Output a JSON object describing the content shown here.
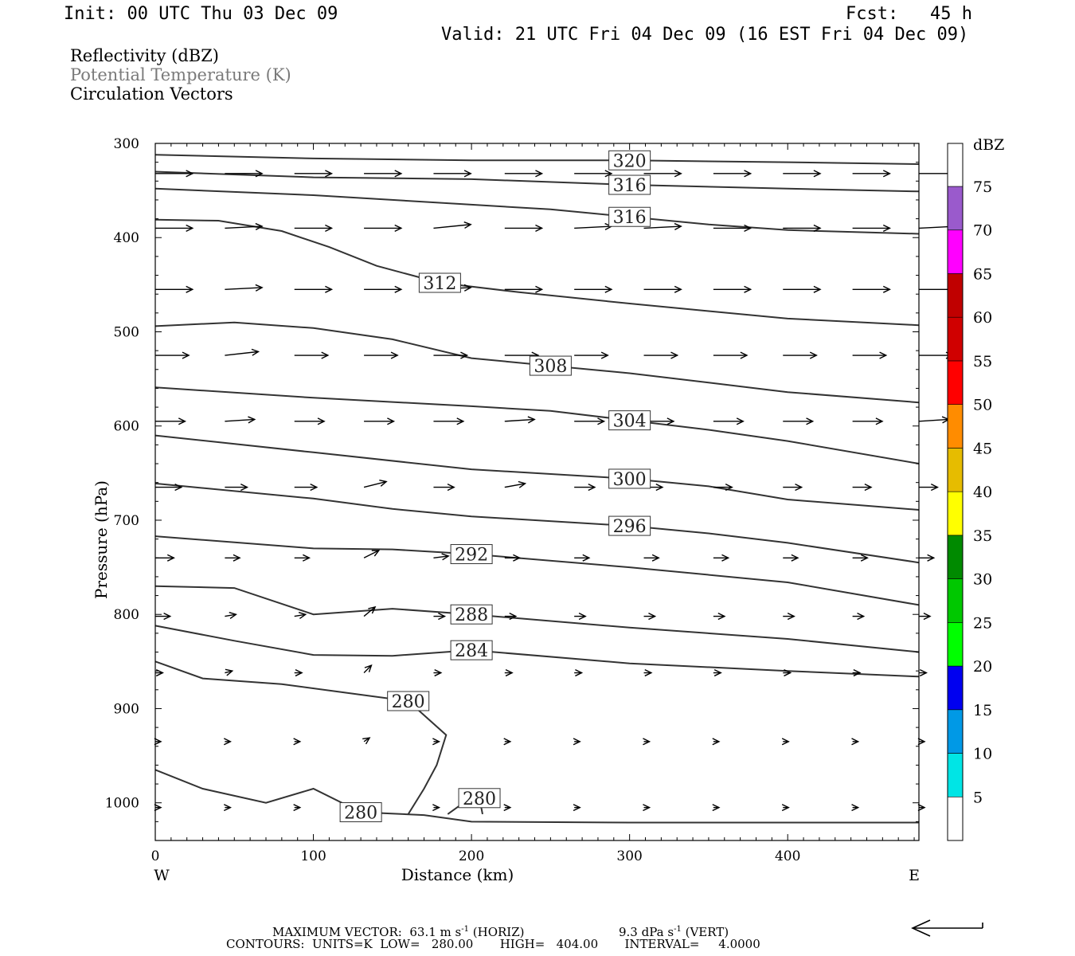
{
  "header": {
    "init": "Init: 00 UTC Thu 03 Dec 09",
    "fcst": "Fcst:   45 h",
    "valid": "Valid: 21 UTC Fri 04 Dec 09 (16 EST Fri 04 Dec 09)"
  },
  "legend_lines": {
    "reflectivity": "Reflectivity (dBZ)",
    "theta": "Potential Temperature (K)",
    "vectors": "Circulation Vectors"
  },
  "footer": {
    "max_vector_label": "MAXIMUM VECTOR:",
    "horiz_value": "63.1 m s",
    "horiz_sup": "-1",
    "horiz_tag": "(HORIZ)",
    "vert_value": "9.3 dPa s",
    "vert_sup": "-1",
    "vert_tag": "(VERT)",
    "contours_line": "CONTOURS:  UNITS=K  LOW=   280.00       HIGH=   404.00       INTERVAL=     4.0000"
  },
  "colors": {
    "theta_line": "#333333",
    "vector": "#000000",
    "frame": "#000000"
  },
  "chart_data": {
    "type": "contour",
    "xlabel": "Distance (km)",
    "ylabel": "Pressure (hPa)",
    "xlim": [
      0,
      483
    ],
    "ylim": [
      300,
      1040
    ],
    "y_log_scale": false,
    "x_ticks": [
      0,
      100,
      200,
      300,
      400
    ],
    "y_ticks": [
      300,
      400,
      500,
      600,
      700,
      800,
      900,
      1000
    ],
    "x_end_labels": {
      "left": "W",
      "right": "E"
    },
    "theta_contours": [
      {
        "level": 320,
        "points": [
          [
            0,
            312
          ],
          [
            100,
            316
          ],
          [
            200,
            318
          ],
          [
            300,
            318
          ],
          [
            400,
            320
          ],
          [
            483,
            322
          ]
        ]
      },
      {
        "level": 316,
        "points": [
          [
            0,
            330
          ],
          [
            100,
            336
          ],
          [
            200,
            338
          ],
          [
            300,
            344
          ],
          [
            400,
            348
          ],
          [
            483,
            351
          ]
        ]
      },
      {
        "level": 316,
        "points": [
          [
            0,
            348
          ],
          [
            100,
            355
          ],
          [
            200,
            365
          ],
          [
            250,
            370
          ],
          [
            300,
            378
          ],
          [
            350,
            386
          ],
          [
            400,
            392
          ],
          [
            483,
            396
          ]
        ]
      },
      {
        "level": 312,
        "points": [
          [
            0,
            381
          ],
          [
            40,
            382
          ],
          [
            80,
            393
          ],
          [
            110,
            410
          ],
          [
            140,
            430
          ],
          [
            180,
            448
          ],
          [
            230,
            458
          ],
          [
            300,
            470
          ],
          [
            350,
            478
          ],
          [
            400,
            486
          ],
          [
            483,
            493
          ]
        ]
      },
      {
        "level": 308,
        "points": [
          [
            0,
            494
          ],
          [
            50,
            490
          ],
          [
            100,
            496
          ],
          [
            150,
            508
          ],
          [
            200,
            528
          ],
          [
            250,
            536
          ],
          [
            300,
            544
          ],
          [
            350,
            554
          ],
          [
            400,
            564
          ],
          [
            483,
            575
          ]
        ]
      },
      {
        "level": 304,
        "points": [
          [
            0,
            559
          ],
          [
            100,
            570
          ],
          [
            200,
            579
          ],
          [
            250,
            584
          ],
          [
            300,
            594
          ],
          [
            350,
            604
          ],
          [
            400,
            616
          ],
          [
            483,
            640
          ]
        ]
      },
      {
        "level": 300,
        "points": [
          [
            0,
            610
          ],
          [
            100,
            628
          ],
          [
            200,
            646
          ],
          [
            300,
            656
          ],
          [
            350,
            664
          ],
          [
            400,
            678
          ],
          [
            483,
            689
          ]
        ]
      },
      {
        "level": 296,
        "points": [
          [
            0,
            661
          ],
          [
            100,
            677
          ],
          [
            150,
            688
          ],
          [
            200,
            696
          ],
          [
            300,
            706
          ],
          [
            350,
            714
          ],
          [
            400,
            724
          ],
          [
            483,
            745
          ]
        ]
      },
      {
        "level": 292,
        "points": [
          [
            0,
            717
          ],
          [
            100,
            730
          ],
          [
            150,
            731
          ],
          [
            200,
            736
          ],
          [
            300,
            750
          ],
          [
            400,
            766
          ],
          [
            483,
            790
          ]
        ]
      },
      {
        "level": 288,
        "points": [
          [
            0,
            770
          ],
          [
            50,
            772
          ],
          [
            100,
            800
          ],
          [
            150,
            794
          ],
          [
            200,
            800
          ],
          [
            300,
            814
          ],
          [
            400,
            826
          ],
          [
            483,
            840
          ]
        ]
      },
      {
        "level": 284,
        "points": [
          [
            0,
            812
          ],
          [
            50,
            828
          ],
          [
            100,
            843
          ],
          [
            150,
            844
          ],
          [
            200,
            838
          ],
          [
            300,
            852
          ],
          [
            400,
            860
          ],
          [
            483,
            866
          ]
        ]
      },
      {
        "level": 280,
        "points": [
          [
            0,
            850
          ],
          [
            30,
            868
          ],
          [
            80,
            874
          ],
          [
            120,
            883
          ],
          [
            160,
            892
          ],
          [
            184,
            928
          ],
          [
            178,
            960
          ],
          [
            170,
            985
          ],
          [
            160,
            1012
          ]
        ]
      },
      {
        "level": 280,
        "points": [
          [
            185,
            1012
          ],
          [
            195,
            1000
          ],
          [
            205,
            995
          ],
          [
            207,
            1012
          ]
        ]
      },
      {
        "level": 280,
        "points": [
          [
            0,
            965
          ],
          [
            30,
            985
          ],
          [
            70,
            1000
          ],
          [
            100,
            985
          ],
          [
            130,
            1010
          ],
          [
            170,
            1013
          ],
          [
            200,
            1020
          ],
          [
            300,
            1021
          ],
          [
            483,
            1021
          ]
        ]
      }
    ],
    "vector_rows": [
      {
        "p": 332,
        "u": [
          1.0,
          1.0,
          1.0,
          1.0,
          1.0,
          1.0,
          1.0,
          1.0,
          1.0,
          1.0,
          1.0,
          1.0
        ],
        "w": [
          0,
          0,
          0,
          0,
          0,
          0,
          0,
          0,
          0,
          0,
          0,
          0
        ]
      },
      {
        "p": 390,
        "u": [
          1.0,
          1.0,
          1.0,
          1.0,
          1.0,
          1.0,
          1.0,
          1.0,
          1.0,
          1.0,
          1.0,
          1.0
        ],
        "w": [
          0,
          -0.05,
          0,
          0,
          -0.1,
          0,
          -0.05,
          -0.05,
          0,
          0,
          0,
          -0.05
        ]
      },
      {
        "p": 455,
        "u": [
          1.0,
          1.0,
          1.0,
          1.0,
          1.0,
          1.0,
          1.0,
          1.0,
          1.0,
          1.0,
          1.0,
          1.0
        ],
        "w": [
          0,
          -0.05,
          0,
          0,
          -0.05,
          0,
          0,
          0,
          0,
          0,
          0,
          0
        ]
      },
      {
        "p": 525,
        "u": [
          0.9,
          0.9,
          0.9,
          0.9,
          0.9,
          0.9,
          0.9,
          0.9,
          0.9,
          0.9,
          0.9,
          0.9
        ],
        "w": [
          0,
          -0.1,
          0,
          0,
          0,
          0,
          0,
          0,
          0,
          0,
          0,
          0
        ]
      },
      {
        "p": 595,
        "u": [
          0.8,
          0.8,
          0.8,
          0.8,
          0.8,
          0.8,
          0.8,
          0.8,
          0.8,
          0.8,
          0.8,
          0.8
        ],
        "w": [
          0,
          -0.05,
          0,
          0,
          0,
          -0.05,
          0,
          0,
          0,
          0,
          0,
          -0.05
        ]
      },
      {
        "p": 665,
        "u": [
          0.7,
          0.6,
          0.6,
          0.6,
          0.55,
          0.55,
          0.55,
          0.5,
          0.5,
          0.5,
          0.5,
          0.5
        ],
        "w": [
          0,
          0,
          0,
          -0.15,
          0,
          -0.1,
          0,
          0,
          0,
          0,
          0,
          0
        ]
      },
      {
        "p": 740,
        "u": [
          0.5,
          0.4,
          0.4,
          0.4,
          0.4,
          0.4,
          0.4,
          0.4,
          0.4,
          0.4,
          0.4,
          0.4
        ],
        "w": [
          0,
          0,
          0,
          -0.2,
          -0.05,
          0,
          0,
          0,
          0,
          0,
          0,
          0
        ]
      },
      {
        "p": 802,
        "u": [
          0.4,
          0.3,
          0.3,
          0.3,
          0.3,
          0.3,
          0.3,
          0.3,
          0.3,
          0.3,
          0.3,
          0.3
        ],
        "w": [
          0,
          -0.05,
          -0.05,
          -0.25,
          0,
          0,
          0,
          0,
          0,
          0,
          0,
          0
        ]
      },
      {
        "p": 862,
        "u": [
          0.2,
          0.2,
          0.2,
          0.2,
          0.2,
          0.2,
          0.2,
          0.2,
          0.2,
          0.2,
          0.2,
          0.2
        ],
        "w": [
          0,
          -0.05,
          0,
          -0.2,
          0,
          0,
          0,
          0,
          0,
          0,
          0,
          0
        ]
      },
      {
        "p": 935,
        "u": [
          0.15,
          0.15,
          0.15,
          0.15,
          0.15,
          0.15,
          0.15,
          0.15,
          0.15,
          0.15,
          0.15,
          0.15
        ],
        "w": [
          0,
          0,
          0,
          -0.1,
          0,
          0,
          0,
          0,
          0,
          0,
          0,
          0
        ]
      },
      {
        "p": 1005,
        "u": [
          0.15,
          0.15,
          0.15,
          0.15,
          0.15,
          0.15,
          0.15,
          0.15,
          0.15,
          0.15,
          0.15,
          0.15
        ],
        "w": [
          0,
          0,
          0,
          0,
          0,
          0,
          0,
          0,
          0,
          0,
          0,
          0
        ]
      }
    ],
    "vector_x": [
      0,
      44,
      88,
      132,
      176,
      221,
      265,
      309,
      353,
      397,
      441,
      483
    ],
    "colorbar": {
      "label": "dBZ",
      "levels": [
        5,
        10,
        15,
        20,
        25,
        30,
        35,
        40,
        45,
        50,
        55,
        60,
        65,
        70,
        75
      ],
      "colors": [
        "#ffffff",
        "#00e5e5",
        "#0099e6",
        "#0000f0",
        "#00ff00",
        "#00c800",
        "#008a00",
        "#ffff00",
        "#e6bc00",
        "#ff8c00",
        "#ff0000",
        "#d00000",
        "#c00000",
        "#ff00ff",
        "#9a5acc",
        "#ffffff"
      ]
    }
  }
}
